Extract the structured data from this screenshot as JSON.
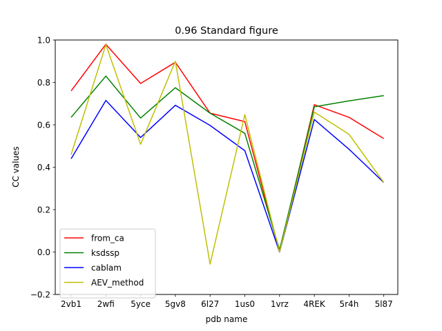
{
  "chart_data": {
    "type": "line",
    "title": "0.96 Standard figure",
    "xlabel": "pdb name",
    "ylabel": "CC values",
    "categories": [
      "2vb1",
      "2wfi",
      "5yce",
      "5gv8",
      "6l27",
      "1us0",
      "1vrz",
      "4REK",
      "5r4h",
      "5l87"
    ],
    "ylim": [
      -0.2,
      1.0
    ],
    "yticks": [
      "−0.2",
      "0.0",
      "0.2",
      "0.4",
      "0.6",
      "0.8",
      "1.0"
    ],
    "grid": false,
    "legend_position": "lower-left",
    "series": [
      {
        "name": "from_ca",
        "color": "#ff0000",
        "values": [
          0.76,
          0.98,
          0.795,
          0.895,
          0.655,
          0.615,
          0.0,
          0.695,
          0.635,
          0.535
        ]
      },
      {
        "name": "ksdssp",
        "color": "#008000",
        "values": [
          0.635,
          0.83,
          0.632,
          0.775,
          0.655,
          0.56,
          0.01,
          0.685,
          0.713,
          0.738
        ]
      },
      {
        "name": "cablam",
        "color": "#0000ff",
        "values": [
          0.44,
          0.715,
          0.54,
          0.692,
          0.597,
          0.478,
          0.0,
          0.625,
          0.485,
          0.328
        ]
      },
      {
        "name": "AEV_method",
        "color": "#bfbf00",
        "values": [
          0.46,
          0.978,
          0.508,
          0.9,
          -0.057,
          0.648,
          0.0,
          0.66,
          0.555,
          0.328
        ]
      }
    ]
  }
}
